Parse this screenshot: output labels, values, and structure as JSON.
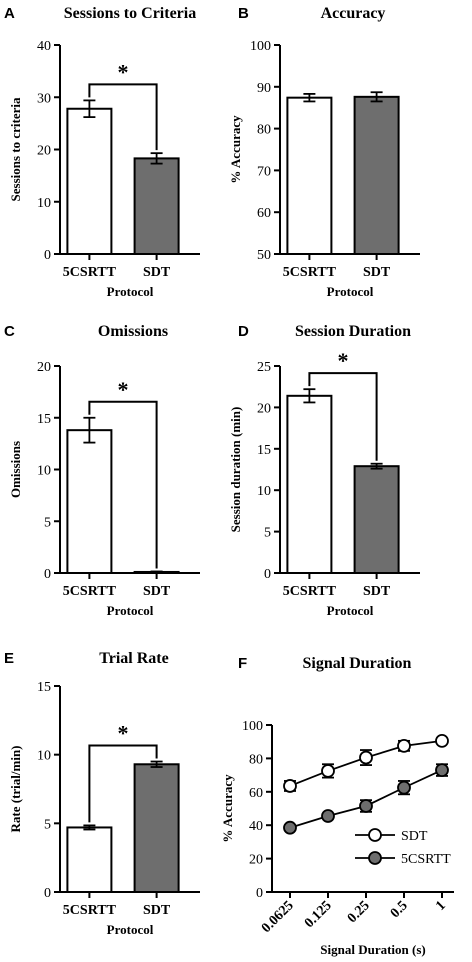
{
  "chart_data": [
    {
      "panel": "A",
      "type": "bar",
      "title": "Sessions to Criteria",
      "xlabel": "Protocol",
      "ylabel": "Sessions to criteria",
      "ylim": [
        0,
        40
      ],
      "yticks": [
        "0",
        "10",
        "20",
        "30",
        "40"
      ],
      "categories": [
        "5CSRTT",
        "SDT"
      ],
      "values": [
        27.8,
        18.3
      ],
      "errors": [
        1.6,
        1.0
      ],
      "bar_colors": [
        "#ffffff",
        "#6e6e6e"
      ],
      "significance": "*"
    },
    {
      "panel": "B",
      "type": "bar",
      "title": "Accuracy",
      "xlabel": "Protocol",
      "ylabel": "% Accuracy",
      "ylim": [
        50,
        100
      ],
      "yticks": [
        "50",
        "60",
        "70",
        "80",
        "90",
        "100"
      ],
      "categories": [
        "5CSRTT",
        "SDT"
      ],
      "values": [
        87.4,
        87.6
      ],
      "errors": [
        0.9,
        1.1
      ],
      "bar_colors": [
        "#ffffff",
        "#6e6e6e"
      ],
      "significance": ""
    },
    {
      "panel": "C",
      "type": "bar",
      "title": "Omissions",
      "xlabel": "Protocol",
      "ylabel": "Omissions",
      "ylim": [
        0,
        20
      ],
      "yticks": [
        "0",
        "5",
        "10",
        "15",
        "20"
      ],
      "categories": [
        "5CSRTT",
        "SDT"
      ],
      "values": [
        13.8,
        0.1
      ],
      "errors": [
        1.2,
        0.05
      ],
      "bar_colors": [
        "#ffffff",
        "#6e6e6e"
      ],
      "significance": "*"
    },
    {
      "panel": "D",
      "type": "bar",
      "title": "Session Duration",
      "xlabel": "Protocol",
      "ylabel": "Session duration (min)",
      "ylim": [
        0,
        25
      ],
      "yticks": [
        "0",
        "5",
        "10",
        "15",
        "20",
        "25"
      ],
      "categories": [
        "5CSRTT",
        "SDT"
      ],
      "values": [
        21.4,
        12.9
      ],
      "errors": [
        0.8,
        0.3
      ],
      "bar_colors": [
        "#ffffff",
        "#6e6e6e"
      ],
      "significance": "*"
    },
    {
      "panel": "E",
      "type": "bar",
      "title": "Trial Rate",
      "xlabel": "Protocol",
      "ylabel": "Rate (trial/min)",
      "ylim": [
        0,
        15
      ],
      "yticks": [
        "0",
        "5",
        "10",
        "15"
      ],
      "categories": [
        "5CSRTT",
        "SDT"
      ],
      "values": [
        4.7,
        9.3
      ],
      "errors": [
        0.15,
        0.2
      ],
      "bar_colors": [
        "#ffffff",
        "#6e6e6e"
      ],
      "significance": "*"
    },
    {
      "panel": "F",
      "type": "line",
      "title": "Signal Duration",
      "xlabel": "Signal Duration (s)",
      "ylabel": "% Accuracy",
      "ylim": [
        0,
        100
      ],
      "yticks": [
        "0",
        "20",
        "40",
        "60",
        "80",
        "100"
      ],
      "x": [
        "0.0625",
        "0.125",
        "0.25",
        "0.5",
        "1"
      ],
      "series": [
        {
          "name": "SDT",
          "values": [
            63.5,
            72.5,
            80.5,
            87.5,
            90.5
          ],
          "errors": [
            3,
            4,
            4.5,
            3,
            1.5
          ],
          "marker_fill": "#ffffff"
        },
        {
          "name": "5CSRTT",
          "values": [
            38.5,
            45.5,
            51.5,
            62.5,
            73
          ],
          "errors": [
            1,
            1.5,
            3.5,
            4,
            3.5
          ],
          "marker_fill": "#6e6e6e"
        }
      ],
      "legend_position": "bottom-right"
    }
  ]
}
